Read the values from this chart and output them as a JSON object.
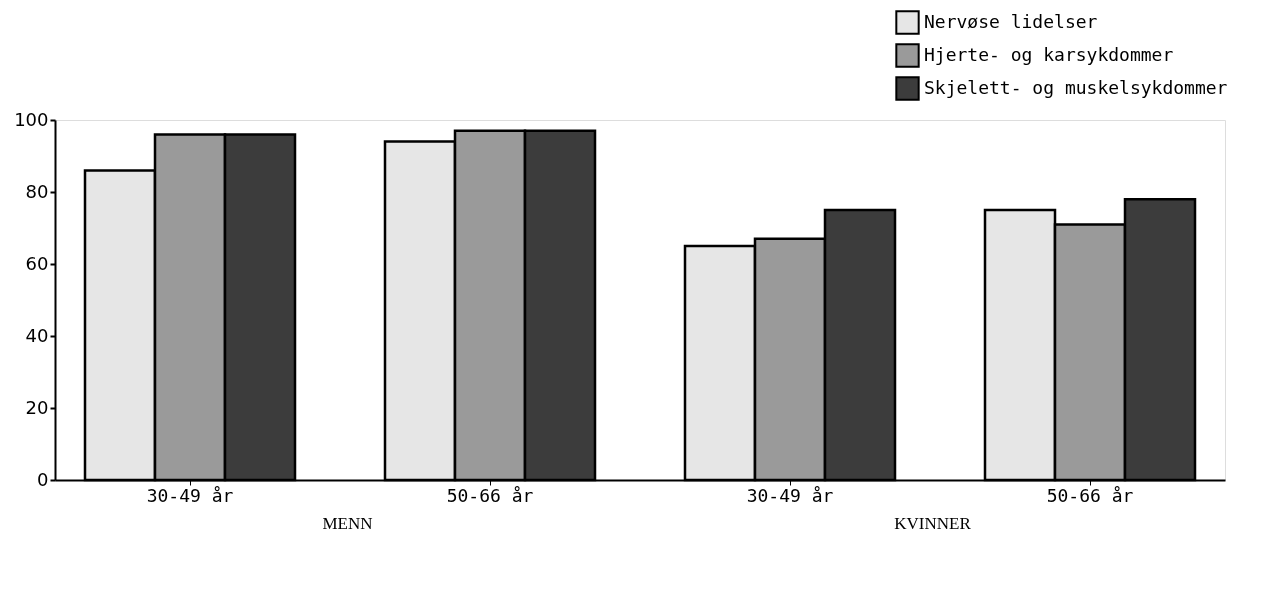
{
  "chart_data": {
    "type": "bar",
    "categories": [
      "30-49 år",
      "50-66 år",
      "30-49 år",
      "50-66 år"
    ],
    "series": [
      {
        "name": "Nervøse lidelser",
        "color": "#e6e6e6",
        "values": [
          86,
          94,
          65,
          75
        ]
      },
      {
        "name": "Hjerte- og karsykdommer",
        "color": "#9a9a9a",
        "values": [
          96,
          97,
          67,
          71
        ]
      },
      {
        "name": "Skjelett- og muskelsykdommer",
        "color": "#3c3c3c",
        "values": [
          96,
          97,
          75,
          78
        ]
      }
    ],
    "ylim": [
      0,
      100
    ],
    "yticks": [
      0,
      20,
      40,
      60,
      80,
      100
    ],
    "grid": false,
    "legend": "top right",
    "annotations": [
      "MENN",
      "KVINNER"
    ]
  }
}
